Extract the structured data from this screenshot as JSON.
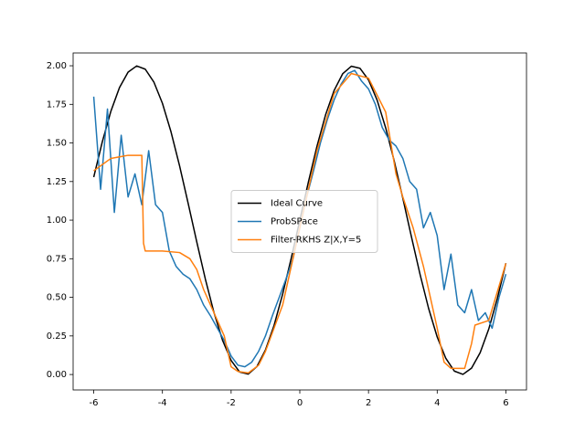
{
  "chart_data": {
    "type": "line",
    "legend": "center",
    "xlim": [
      -6.6,
      6.6
    ],
    "ylim": [
      -0.1,
      2.083
    ],
    "xticks": [
      -6,
      -4,
      -2,
      0,
      2,
      4,
      6
    ],
    "yticks": [
      {
        "value": 0,
        "label": "0.00"
      },
      {
        "value": 0.25,
        "label": "0.25"
      },
      {
        "value": 0.5,
        "label": "0.50"
      },
      {
        "value": 0.75,
        "label": "0.75"
      },
      {
        "value": 1,
        "label": "1.00"
      },
      {
        "value": 1.25,
        "label": "1.25"
      },
      {
        "value": 1.5,
        "label": "1.50"
      },
      {
        "value": 1.75,
        "label": "1.75"
      },
      {
        "value": 2,
        "label": "2.00"
      }
    ],
    "series": [
      {
        "name": "Ideal Curve",
        "color": "#000000",
        "x": [
          -6,
          -5.75,
          -5.5,
          -5.25,
          -5,
          -4.75,
          -4.5,
          -4.25,
          -4,
          -3.75,
          -3.5,
          -3.25,
          -3,
          -2.75,
          -2.5,
          -2.25,
          -2,
          -1.75,
          -1.5,
          -1.25,
          -1,
          -0.75,
          -0.5,
          -0.25,
          0,
          0.25,
          0.5,
          0.75,
          1,
          1.25,
          1.5,
          1.75,
          2,
          2.25,
          2.5,
          2.75,
          3,
          3.25,
          3.5,
          3.75,
          4,
          4.25,
          4.5,
          4.75,
          5,
          5.25,
          5.5,
          5.75,
          6
        ],
        "values": [
          1.279,
          1.508,
          1.706,
          1.859,
          1.959,
          1.999,
          1.978,
          1.895,
          1.757,
          1.572,
          1.351,
          1.108,
          0.859,
          0.618,
          0.402,
          0.222,
          0.091,
          0.016,
          0.003,
          0.051,
          0.159,
          0.318,
          0.521,
          0.753,
          1,
          1.247,
          1.479,
          1.682,
          1.841,
          1.949,
          1.997,
          1.984,
          1.909,
          1.778,
          1.598,
          1.382,
          1.141,
          0.892,
          0.649,
          0.428,
          0.243,
          0.105,
          0.022,
          0.001,
          0.041,
          0.141,
          0.294,
          0.492,
          0.721
        ]
      },
      {
        "name": "ProbSPace",
        "color": "#1f77b4",
        "x": [
          -6,
          -5.8,
          -5.6,
          -5.4,
          -5.2,
          -5,
          -4.8,
          -4.6,
          -4.4,
          -4.2,
          -4,
          -3.8,
          -3.6,
          -3.4,
          -3.2,
          -3,
          -2.8,
          -2.6,
          -2.4,
          -2.2,
          -2,
          -1.8,
          -1.6,
          -1.4,
          -1.2,
          -1,
          -0.8,
          -0.6,
          -0.4,
          -0.2,
          0,
          0.2,
          0.4,
          0.6,
          0.8,
          1,
          1.2,
          1.4,
          1.6,
          1.8,
          2,
          2.2,
          2.4,
          2.6,
          2.8,
          3,
          3.2,
          3.4,
          3.6,
          3.8,
          4,
          4.2,
          4.4,
          4.6,
          4.8,
          5,
          5.2,
          5.4,
          5.6,
          5.8,
          6
        ],
        "values": [
          1.8,
          1.2,
          1.72,
          1.05,
          1.55,
          1.15,
          1.3,
          1.1,
          1.45,
          1.1,
          1.05,
          0.8,
          0.7,
          0.65,
          0.62,
          0.55,
          0.45,
          0.38,
          0.3,
          0.22,
          0.12,
          0.06,
          0.05,
          0.08,
          0.15,
          0.25,
          0.38,
          0.5,
          0.62,
          0.75,
          0.95,
          1.15,
          1.32,
          1.5,
          1.65,
          1.78,
          1.88,
          1.95,
          1.97,
          1.9,
          1.85,
          1.75,
          1.6,
          1.52,
          1.48,
          1.4,
          1.25,
          1.2,
          0.95,
          1.05,
          0.9,
          0.55,
          0.78,
          0.45,
          0.4,
          0.55,
          0.35,
          0.4,
          0.3,
          0.5,
          0.65
        ]
      },
      {
        "name": "Filter-RKHS Z|X,Y=5",
        "color": "#ff7f0e",
        "x": [
          -6,
          -5.5,
          -5,
          -4.6,
          -4.55,
          -4.5,
          -4,
          -3.5,
          -3.2,
          -3,
          -2.8,
          -2.5,
          -2.2,
          -2,
          -1.8,
          -1.5,
          -1.2,
          -1,
          -0.5,
          0,
          0.5,
          1,
          1.5,
          2,
          2.5,
          2.8,
          3,
          3.3,
          3.6,
          3.8,
          4,
          4.2,
          4.4,
          4.8,
          5,
          5.1,
          5.5,
          6
        ],
        "values": [
          1.32,
          1.4,
          1.42,
          1.42,
          0.85,
          0.8,
          0.8,
          0.79,
          0.75,
          0.68,
          0.55,
          0.4,
          0.25,
          0.05,
          0.02,
          0.01,
          0.06,
          0.15,
          0.45,
          0.95,
          1.45,
          1.82,
          1.95,
          1.92,
          1.7,
          1.3,
          1.15,
          0.95,
          0.7,
          0.5,
          0.3,
          0.08,
          0.04,
          0.04,
          0.2,
          0.32,
          0.35,
          0.72
        ]
      }
    ]
  }
}
